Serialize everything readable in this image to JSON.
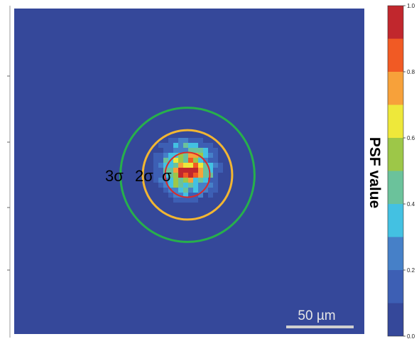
{
  "chart_data": {
    "type": "heatmap",
    "title": "",
    "xlabel": "",
    "ylabel": "",
    "colorbar": {
      "label": "PSF value",
      "range": [
        0.0,
        1.0
      ],
      "ticks": [
        {
          "value": 0.0,
          "label": "0.0"
        },
        {
          "value": 0.2,
          "label": "0.2"
        },
        {
          "value": 0.4,
          "label": "0.4"
        },
        {
          "value": 0.6,
          "label": "0.6"
        },
        {
          "value": 0.8,
          "label": "0.8"
        },
        {
          "value": 1.0,
          "label": "1.0"
        }
      ],
      "levels": [
        {
          "from": 0.0,
          "to": 0.1,
          "color": "#35489a"
        },
        {
          "from": 0.1,
          "to": 0.2,
          "color": "#3d5fb4"
        },
        {
          "from": 0.2,
          "to": 0.3,
          "color": "#4680c8"
        },
        {
          "from": 0.3,
          "to": 0.4,
          "color": "#43c1e2"
        },
        {
          "from": 0.4,
          "to": 0.5,
          "color": "#6bc29b"
        },
        {
          "from": 0.5,
          "to": 0.6,
          "color": "#9dc748"
        },
        {
          "from": 0.6,
          "to": 0.7,
          "color": "#eee83a"
        },
        {
          "from": 0.7,
          "to": 0.8,
          "color": "#f7a13a"
        },
        {
          "from": 0.8,
          "to": 0.9,
          "color": "#f15a24"
        },
        {
          "from": 0.9,
          "to": 1.0,
          "color": "#c1272d"
        }
      ]
    },
    "distribution": {
      "shape": "2D Gaussian spot, noisy contour map",
      "sigma_um": 12,
      "peak_value": 0.95
    },
    "circles": [
      {
        "label": "σ",
        "radius_sigma": 1,
        "color": "#d92b2b"
      },
      {
        "label": "2σ",
        "radius_sigma": 2,
        "color": "#f2b632"
      },
      {
        "label": "3σ",
        "radius_sigma": 3,
        "color": "#27b04b"
      }
    ],
    "scale_bar": {
      "label": "50 µm",
      "length_um": 50
    }
  }
}
